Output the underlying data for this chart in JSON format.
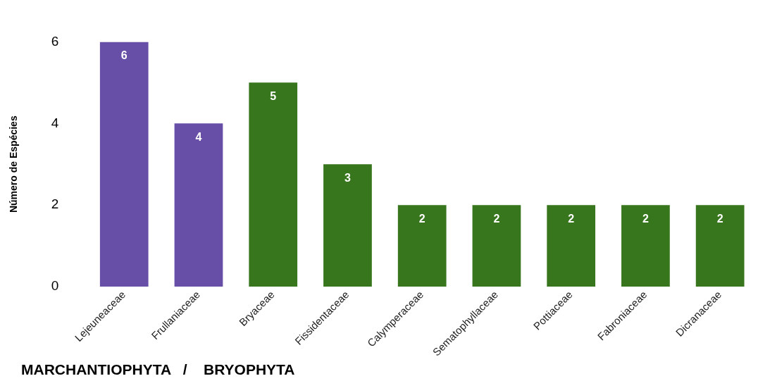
{
  "chart_data": {
    "type": "bar",
    "ylabel": "Número de Espécies",
    "categories": [
      "Lejeuneaceae",
      "Frullaniaceae",
      "Bryaceae",
      "Fissidentaceae",
      "Calymperaceae",
      "Sematophyllaceae",
      "Pottiaceae",
      "Fabroniaceae",
      "Dicranaceae"
    ],
    "values": [
      6,
      4,
      5,
      3,
      2,
      2,
      2,
      2,
      2
    ],
    "colors": [
      "#674ea7",
      "#674ea7",
      "#38761d",
      "#38761d",
      "#38761d",
      "#38761d",
      "#38761d",
      "#38761d",
      "#38761d"
    ],
    "ylim": [
      0,
      6
    ],
    "yticks": [
      0,
      2,
      4,
      6
    ],
    "grid": false,
    "legend": false,
    "data_labels": true,
    "annotations": [
      "MARCHANTIOPHYTA   /    BRYOPHYTA"
    ]
  }
}
